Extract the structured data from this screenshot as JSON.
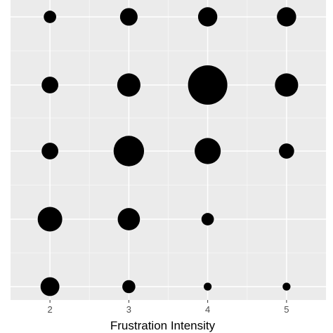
{
  "chart_data": {
    "type": "scatter",
    "encoding": "bubble",
    "title": "",
    "xlabel": "Frustration Intensity",
    "ylabel": "",
    "x_ticks": [
      "2",
      "3",
      "4",
      "5"
    ],
    "xlim": [
      1.5,
      5.5
    ],
    "y_levels": 5,
    "grid": true,
    "legend": "none",
    "colors": {
      "panel_background": "#ebebeb",
      "grid_major": "#ffffff",
      "grid_minor": "#f5f5f5",
      "point": "#000000"
    },
    "points": [
      {
        "x": 2,
        "y": 5,
        "size": 1.0
      },
      {
        "x": 3,
        "y": 5,
        "size": 2.0
      },
      {
        "x": 4,
        "y": 5,
        "size": 2.4
      },
      {
        "x": 5,
        "y": 5,
        "size": 2.4
      },
      {
        "x": 2,
        "y": 4,
        "size": 1.8
      },
      {
        "x": 3,
        "y": 4,
        "size": 3.5
      },
      {
        "x": 4,
        "y": 4,
        "size": 10.0
      },
      {
        "x": 5,
        "y": 4,
        "size": 3.5
      },
      {
        "x": 2,
        "y": 3,
        "size": 1.8
      },
      {
        "x": 3,
        "y": 3,
        "size": 6.0
      },
      {
        "x": 4,
        "y": 3,
        "size": 4.4
      },
      {
        "x": 5,
        "y": 3,
        "size": 1.5
      },
      {
        "x": 2,
        "y": 2,
        "size": 3.9
      },
      {
        "x": 3,
        "y": 2,
        "size": 3.2
      },
      {
        "x": 4,
        "y": 2,
        "size": 1.0
      },
      {
        "x": 2,
        "y": 1,
        "size": 2.3
      },
      {
        "x": 3,
        "y": 1,
        "size": 1.1
      },
      {
        "x": 4,
        "y": 1,
        "size": 0.4
      },
      {
        "x": 5,
        "y": 1,
        "size": 0.4
      }
    ]
  }
}
